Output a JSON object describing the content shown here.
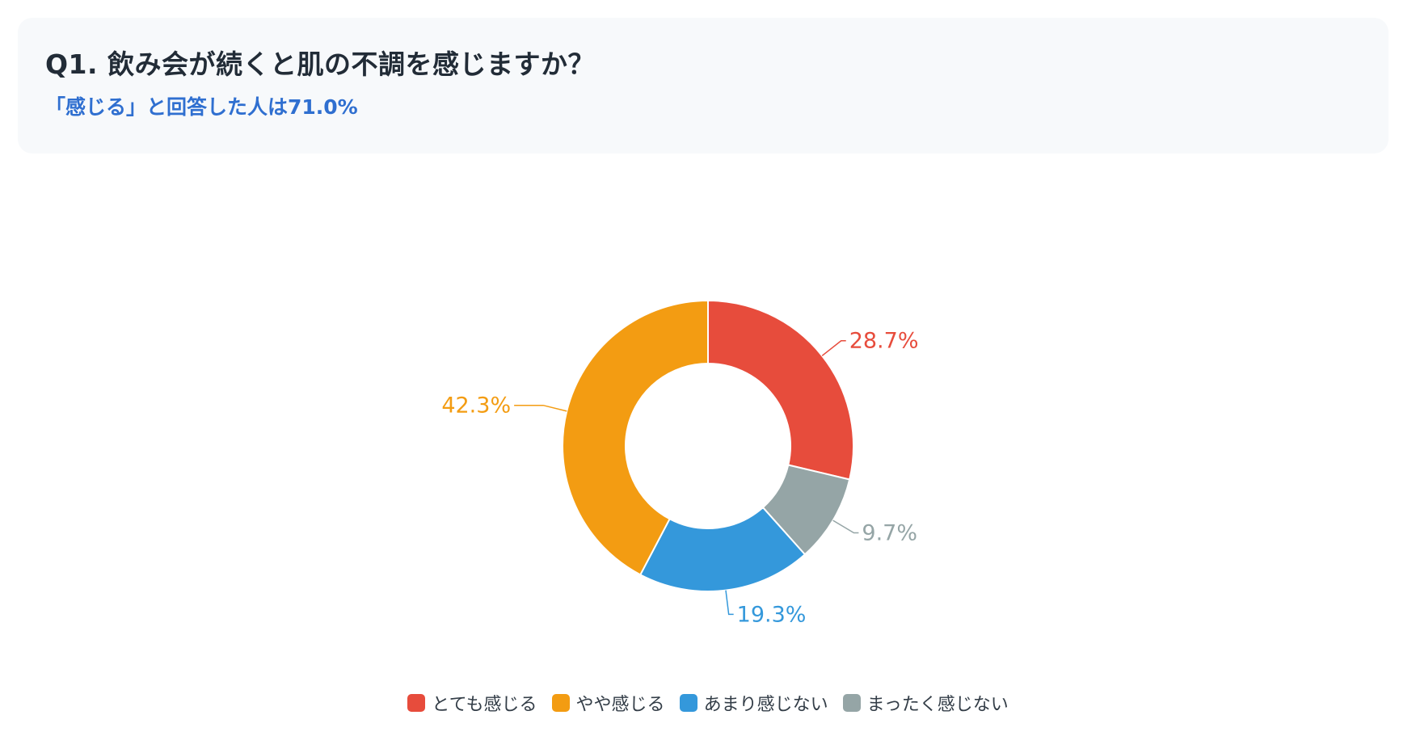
{
  "header": {
    "title": "Q1. 飲み会が続くと肌の不調を感じますか？",
    "subtitle": "「感じる」と回答した人は71.0%"
  },
  "chart_data": {
    "type": "pie",
    "donut": true,
    "categories": [
      "とても感じる",
      "やや感じる",
      "あまり感じない",
      "まったく感じない"
    ],
    "values": [
      28.7,
      42.3,
      19.3,
      9.7
    ],
    "value_labels": [
      "28.7%",
      "42.3%",
      "19.3%",
      "9.7%"
    ],
    "colors": [
      "#e74c3c",
      "#f39c12",
      "#3498db",
      "#95a5a6"
    ],
    "legend_position": "bottom"
  }
}
